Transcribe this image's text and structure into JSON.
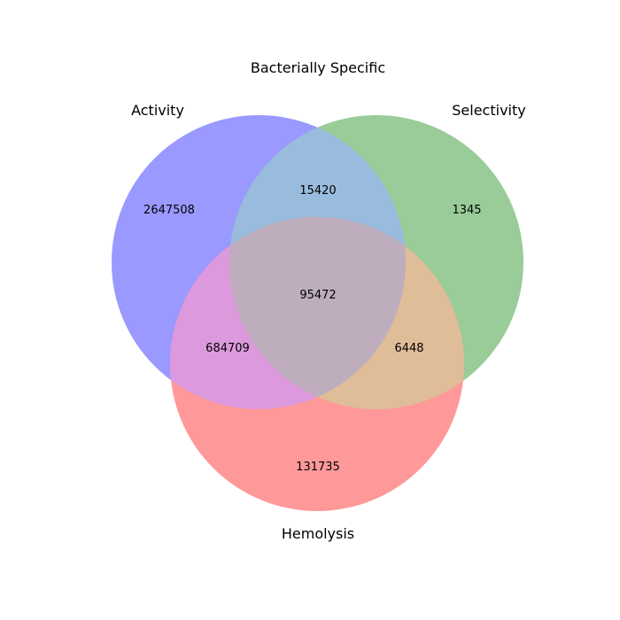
{
  "figure": {
    "title": "Bacterially Specific"
  },
  "sets": {
    "a": {
      "label": "Activity",
      "color": "#9999ff"
    },
    "b": {
      "label": "Selectivity",
      "color": "#99cc99"
    },
    "c": {
      "label": "Hemolysis",
      "color": "#ff9999"
    }
  },
  "regions": {
    "a_only": "2647508",
    "b_only": "1345",
    "c_only": "131735",
    "ab_only": "15420",
    "ac_only": "684709",
    "bc_only": "6448",
    "abc": "95472"
  },
  "region_colors": {
    "ab": "#99bbdd",
    "ac": "#dd99dd",
    "bc": "#dfbd99",
    "abc": "#bdadbd"
  }
}
